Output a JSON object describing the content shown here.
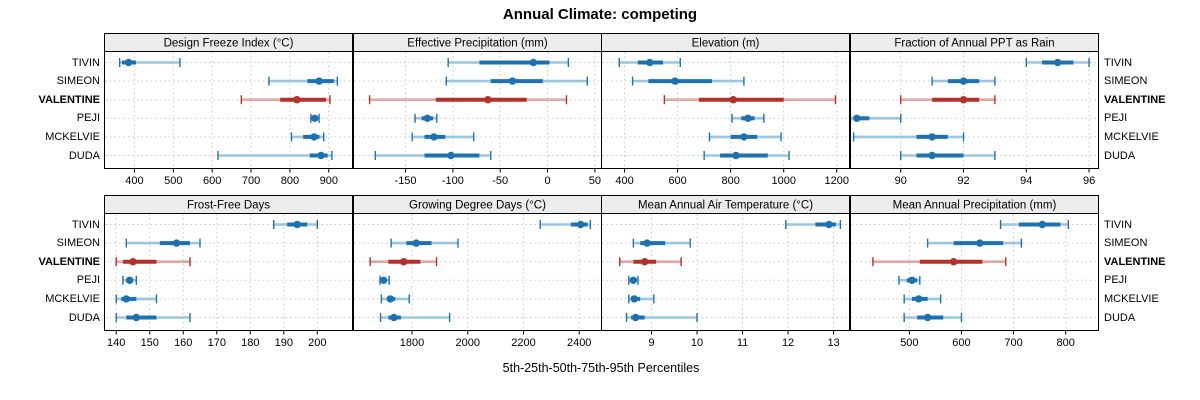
{
  "chart_data": {
    "type": "dotplot-percentile-trellis",
    "title": "Annual Climate: competing",
    "xlabel": "5th-25th-50th-75th-95th Percentiles",
    "legend_position": "none",
    "grid": true,
    "stations": [
      "TIVIN",
      "SIMEON",
      "VALENTINE",
      "PEJI",
      "MCKELVIE",
      "DUDA"
    ],
    "highlight_station": "VALENTINE",
    "colors": {
      "series_main": "#1c72b0",
      "series_whisker": "#9cc6e0",
      "highlight_main": "#b5302a",
      "highlight_whisker": "#e3a7a2",
      "strip_bg": "#ececec",
      "panel_border": "#000000",
      "gridline": "#c9c9c9"
    },
    "percentile_order": [
      "p5",
      "p25",
      "p50",
      "p75",
      "p95"
    ],
    "panels": [
      {
        "row": 0,
        "col": 0,
        "title": "Design Freeze Index (°C)",
        "xlim": [
          323,
          961
        ],
        "ticks": [
          400,
          500,
          600,
          700,
          800,
          900
        ],
        "values": [
          [
            362,
            368,
            385,
            404,
            517
          ],
          [
            746,
            845,
            875,
            913,
            922
          ],
          [
            675,
            775,
            818,
            893,
            903
          ],
          [
            854,
            858,
            864,
            870,
            875
          ],
          [
            804,
            834,
            862,
            876,
            887
          ],
          [
            615,
            851,
            880,
            897,
            908
          ]
        ]
      },
      {
        "row": 0,
        "col": 1,
        "title": "Effective Precipitation (mm)",
        "xlim": [
          -205,
          57
        ],
        "ticks": [
          -150,
          -100,
          -50,
          0,
          50
        ],
        "values": [
          [
            -105,
            -72,
            -15,
            2,
            22
          ],
          [
            -107,
            -60,
            -37,
            -5,
            42
          ],
          [
            -188,
            -118,
            -63,
            -22,
            20
          ],
          [
            -140,
            -133,
            -127,
            -121,
            -117
          ],
          [
            -143,
            -130,
            -120,
            -108,
            -78
          ],
          [
            -182,
            -130,
            -102,
            -72,
            -60
          ]
        ]
      },
      {
        "row": 0,
        "col": 2,
        "title": "Elevation (m)",
        "xlim": [
          313,
          1248
        ],
        "ticks": [
          400,
          600,
          800,
          1000,
          1200
        ],
        "values": [
          [
            380,
            450,
            495,
            545,
            610
          ],
          [
            430,
            490,
            590,
            730,
            850
          ],
          [
            550,
            680,
            810,
            1000,
            1195
          ],
          [
            805,
            840,
            865,
            890,
            925
          ],
          [
            720,
            800,
            850,
            900,
            990
          ],
          [
            700,
            760,
            820,
            940,
            1020
          ]
        ]
      },
      {
        "row": 0,
        "col": 3,
        "title": "Fraction of Annual PPT as Rain",
        "xlim": [
          88.4,
          96.3
        ],
        "ticks": [
          90,
          92,
          94,
          96
        ],
        "values": [
          [
            94,
            94.5,
            95,
            95.5,
            96
          ],
          [
            91,
            91.5,
            92,
            92.5,
            93
          ],
          [
            90,
            91,
            92,
            92.5,
            93
          ],
          [
            88.4,
            88.5,
            88.6,
            89,
            90
          ],
          [
            88.5,
            90.5,
            91,
            91.5,
            92
          ],
          [
            90,
            90.5,
            91,
            92,
            93
          ]
        ]
      },
      {
        "row": 1,
        "col": 0,
        "title": "Frost-Free Days",
        "xlim": [
          136.5,
          210.5
        ],
        "ticks": [
          140,
          150,
          160,
          170,
          180,
          190,
          200
        ],
        "values": [
          [
            187,
            191,
            194,
            197,
            200
          ],
          [
            143,
            153,
            158,
            162,
            165
          ],
          [
            140,
            142,
            145,
            152,
            162
          ],
          [
            142,
            143,
            144,
            145,
            146
          ],
          [
            140,
            141.5,
            143,
            146,
            152
          ],
          [
            140,
            143,
            146,
            152,
            162
          ]
        ]
      },
      {
        "row": 1,
        "col": 1,
        "title": "Growing Degree Days (°C)",
        "xlim": [
          1590,
          2480
        ],
        "ticks": [
          1800,
          2000,
          2200,
          2400
        ],
        "values": [
          [
            2260,
            2370,
            2405,
            2430,
            2440
          ],
          [
            1725,
            1780,
            1815,
            1870,
            1965
          ],
          [
            1650,
            1715,
            1770,
            1830,
            1888
          ],
          [
            1685,
            1692,
            1698,
            1708,
            1718
          ],
          [
            1690,
            1710,
            1722,
            1740,
            1790
          ],
          [
            1687,
            1715,
            1735,
            1760,
            1935
          ]
        ]
      },
      {
        "row": 1,
        "col": 2,
        "title": "Mean Annual Air Temperature (°C)",
        "xlim": [
          7.9,
          13.35
        ],
        "ticks": [
          9,
          10,
          11,
          12,
          13
        ],
        "values": [
          [
            11.95,
            12.6,
            12.9,
            13.05,
            13.15
          ],
          [
            8.6,
            8.75,
            8.9,
            9.3,
            9.85
          ],
          [
            8.3,
            8.6,
            8.85,
            9.1,
            9.65
          ],
          [
            8.5,
            8.55,
            8.6,
            8.65,
            8.7
          ],
          [
            8.5,
            8.55,
            8.62,
            8.75,
            9.05
          ],
          [
            8.45,
            8.55,
            8.65,
            8.85,
            10.0
          ]
        ]
      },
      {
        "row": 1,
        "col": 3,
        "title": "Mean Annual Precipitation (mm)",
        "xlim": [
          387,
          863
        ],
        "ticks": [
          500,
          600,
          700,
          800
        ],
        "values": [
          [
            675,
            710,
            755,
            790,
            805
          ],
          [
            535,
            585,
            635,
            680,
            715
          ],
          [
            430,
            520,
            585,
            640,
            685
          ],
          [
            480,
            495,
            505,
            515,
            520
          ],
          [
            490,
            505,
            518,
            535,
            560
          ],
          [
            490,
            515,
            535,
            565,
            600
          ]
        ]
      }
    ]
  }
}
